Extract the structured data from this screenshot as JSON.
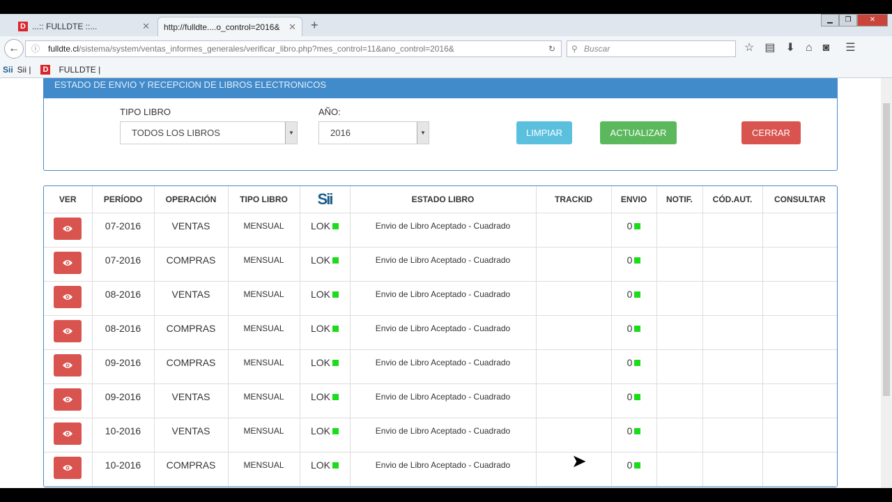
{
  "browser": {
    "tabs": [
      {
        "label": "...:: FULLDTE ::..."
      },
      {
        "label": "http://fulldte....o_control=2016&"
      }
    ],
    "url_domain": "fulldte.cl",
    "url_path": "/sistema/system/ventas_informes_generales/verificar_libro.php?mes_control=11&ano_control=2016&",
    "search_placeholder": "Buscar",
    "bookmarks": [
      {
        "label": "Sii |"
      },
      {
        "label": "FULLDTE |"
      }
    ]
  },
  "panel": {
    "title": "ESTADO DE ENVIO Y RECEPCION DE LIBROS ELECTRONICOS",
    "tipo_libro_label": "TIPO LIBRO",
    "tipo_libro_value": "TODOS LOS LIBROS",
    "anio_label": "AÑO:",
    "anio_value": "2016",
    "limpiar": "LIMPIAR",
    "actualizar": "ACTUALIZAR",
    "cerrar": "CERRAR"
  },
  "colors": {
    "limpiar": "#5bc0de",
    "actualizar": "#5cb85c",
    "cerrar": "#d9534f",
    "header": "#428bca",
    "status_ok": "#1bdc1b"
  },
  "table": {
    "headers": [
      "VER",
      "PERÍODO",
      "OPERACIÓN",
      "TIPO LIBRO",
      "Sii",
      "ESTADO LIBRO",
      "TRACKID",
      "ENVIO",
      "NOTIF.",
      "CÓD.AUT.",
      "CONSULTAR"
    ],
    "rows": [
      {
        "periodo": "07-2016",
        "operacion": "VENTAS",
        "tipo": "MENSUAL",
        "sii": "LOK",
        "estado": "Envio de Libro Aceptado - Cuadrado",
        "trackid": "",
        "envio": "0",
        "notif": "",
        "cod": "",
        "consultar": ""
      },
      {
        "periodo": "07-2016",
        "operacion": "COMPRAS",
        "tipo": "MENSUAL",
        "sii": "LOK",
        "estado": "Envio de Libro Aceptado - Cuadrado",
        "trackid": "",
        "envio": "0",
        "notif": "",
        "cod": "",
        "consultar": ""
      },
      {
        "periodo": "08-2016",
        "operacion": "VENTAS",
        "tipo": "MENSUAL",
        "sii": "LOK",
        "estado": "Envio de Libro Aceptado - Cuadrado",
        "trackid": "",
        "envio": "0",
        "notif": "",
        "cod": "",
        "consultar": ""
      },
      {
        "periodo": "08-2016",
        "operacion": "COMPRAS",
        "tipo": "MENSUAL",
        "sii": "LOK",
        "estado": "Envio de Libro Aceptado - Cuadrado",
        "trackid": "",
        "envio": "0",
        "notif": "",
        "cod": "",
        "consultar": ""
      },
      {
        "periodo": "09-2016",
        "operacion": "COMPRAS",
        "tipo": "MENSUAL",
        "sii": "LOK",
        "estado": "Envio de Libro Aceptado - Cuadrado",
        "trackid": "",
        "envio": "0",
        "notif": "",
        "cod": "",
        "consultar": ""
      },
      {
        "periodo": "09-2016",
        "operacion": "VENTAS",
        "tipo": "MENSUAL",
        "sii": "LOK",
        "estado": "Envio de Libro Aceptado - Cuadrado",
        "trackid": "",
        "envio": "0",
        "notif": "",
        "cod": "",
        "consultar": ""
      },
      {
        "periodo": "10-2016",
        "operacion": "VENTAS",
        "tipo": "MENSUAL",
        "sii": "LOK",
        "estado": "Envio de Libro Aceptado - Cuadrado",
        "trackid": "",
        "envio": "0",
        "notif": "",
        "cod": "",
        "consultar": ""
      },
      {
        "periodo": "10-2016",
        "operacion": "COMPRAS",
        "tipo": "MENSUAL",
        "sii": "LOK",
        "estado": "Envio de Libro Aceptado - Cuadrado",
        "trackid": "",
        "envio": "0",
        "notif": "",
        "cod": "",
        "consultar": ""
      }
    ]
  }
}
